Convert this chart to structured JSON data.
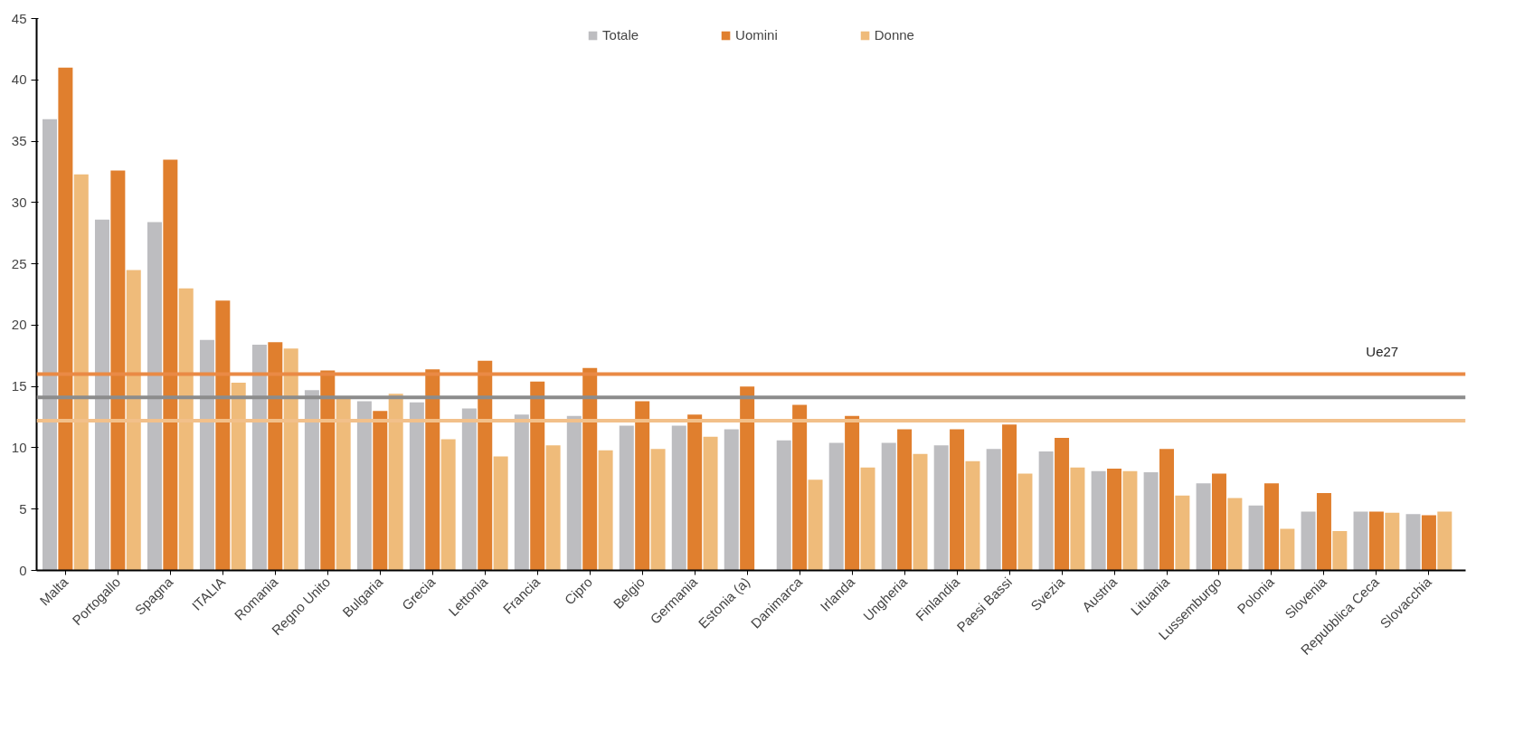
{
  "chart_data": {
    "type": "bar",
    "categories": [
      "Malta",
      "Portogallo",
      "Spagna",
      "ITALIA",
      "Romania",
      "Regno Unito",
      "Bulgaria",
      "Grecia",
      "Lettonia",
      "Francia",
      "Cipro",
      "Belgio",
      "Germania",
      "Estonia (a)",
      "Danimarca",
      "Irlanda",
      "Ungheria",
      "Finlandia",
      "Paesi Bassi",
      "Svezia",
      "Austria",
      "Lituania",
      "Lussemburgo",
      "Polonia",
      "Slovenia",
      "Repubblica Ceca",
      "Slovacchia"
    ],
    "series": [
      {
        "name": "Totale",
        "color": "#bdbdc0",
        "values": [
          36.8,
          28.6,
          28.4,
          18.8,
          18.4,
          14.7,
          13.8,
          13.7,
          13.2,
          12.7,
          12.6,
          11.8,
          11.8,
          11.5,
          10.6,
          10.4,
          10.4,
          10.2,
          9.9,
          9.7,
          8.1,
          8.0,
          7.1,
          5.3,
          4.8,
          4.8,
          4.6
        ]
      },
      {
        "name": "Uomini",
        "color": "#e07f2e",
        "values": [
          41.0,
          32.6,
          33.5,
          22.0,
          18.6,
          16.3,
          13.0,
          16.4,
          17.1,
          15.4,
          16.5,
          13.8,
          12.7,
          15.0,
          13.5,
          12.6,
          11.5,
          11.5,
          11.9,
          10.8,
          8.3,
          9.9,
          7.9,
          7.1,
          6.3,
          4.8,
          4.5
        ]
      },
      {
        "name": "Donne",
        "color": "#efbb7a",
        "values": [
          32.3,
          24.5,
          23.0,
          15.3,
          18.1,
          14.0,
          14.4,
          10.7,
          9.3,
          10.2,
          9.8,
          9.9,
          10.9,
          null,
          7.4,
          8.4,
          9.5,
          8.9,
          7.9,
          8.4,
          8.1,
          6.1,
          5.9,
          3.4,
          3.2,
          4.7,
          4.8
        ]
      }
    ],
    "ylim": [
      0,
      45
    ],
    "yticks": [
      0,
      5,
      10,
      15,
      20,
      25,
      30,
      35,
      40,
      45
    ],
    "ref_lines": [
      {
        "axis": "y",
        "value": 16.0,
        "color": "#ea8a45"
      },
      {
        "axis": "y",
        "value": 14.1,
        "color": "#8c8c8c"
      },
      {
        "axis": "y",
        "value": 12.2,
        "color": "#f2c08a"
      }
    ],
    "annotations": [
      "Ue27"
    ],
    "legend": "top",
    "grid": false
  }
}
